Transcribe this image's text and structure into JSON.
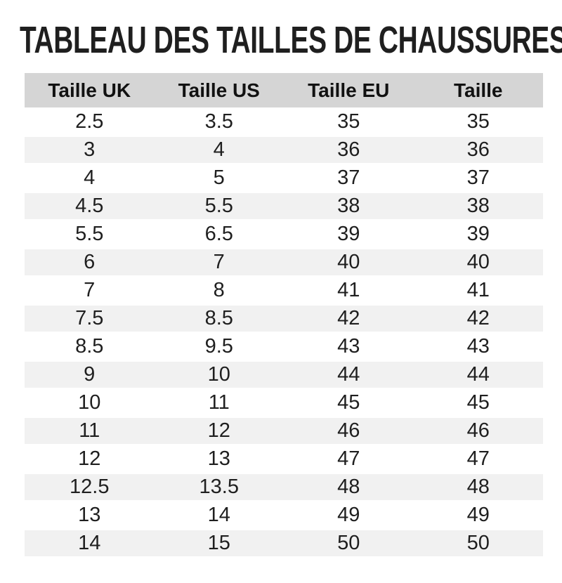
{
  "chart_data": {
    "type": "table",
    "title": "TABLEAU DES TAILLES DE CHAUSSURES",
    "columns": [
      "Taille UK",
      "Taille US",
      "Taille EU",
      "Taille"
    ],
    "rows": [
      [
        "2.5",
        "3.5",
        "35",
        "35"
      ],
      [
        "3",
        "4",
        "36",
        "36"
      ],
      [
        "4",
        "5",
        "37",
        "37"
      ],
      [
        "4.5",
        "5.5",
        "38",
        "38"
      ],
      [
        "5.5",
        "6.5",
        "39",
        "39"
      ],
      [
        "6",
        "7",
        "40",
        "40"
      ],
      [
        "7",
        "8",
        "41",
        "41"
      ],
      [
        "7.5",
        "8.5",
        "42",
        "42"
      ],
      [
        "8.5",
        "9.5",
        "43",
        "43"
      ],
      [
        "9",
        "10",
        "44",
        "44"
      ],
      [
        "10",
        "11",
        "45",
        "45"
      ],
      [
        "11",
        "12",
        "46",
        "46"
      ],
      [
        "12",
        "13",
        "47",
        "47"
      ],
      [
        "12.5",
        "13.5",
        "48",
        "48"
      ],
      [
        "13",
        "14",
        "49",
        "49"
      ],
      [
        "14",
        "15",
        "50",
        "50"
      ]
    ],
    "layout": {
      "legend": "none",
      "grid": "off",
      "header_bg": "#d5d5d5",
      "stripe_bg": "#f1f1f1",
      "text_color": "#1f1f1f"
    }
  }
}
